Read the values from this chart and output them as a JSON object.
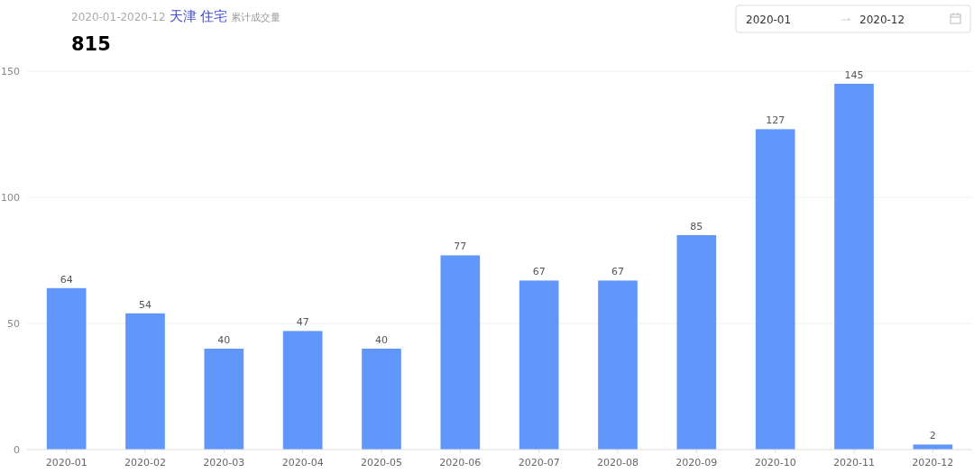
{
  "chart_data": {
    "type": "bar",
    "title": "815",
    "annotations": [
      "2020-01-2020-12",
      "天津 住宅",
      "累计成交量",
      "2020-01",
      "2020-12"
    ],
    "categories": [
      "2020-01",
      "2020-02",
      "2020-03",
      "2020-04",
      "2020-05",
      "2020-06",
      "2020-07",
      "2020-08",
      "2020-09",
      "2020-10",
      "2020-11",
      "2020-12"
    ],
    "values": [
      64,
      54,
      40,
      47,
      40,
      77,
      67,
      67,
      85,
      127,
      145,
      2
    ],
    "color": "#6197fb",
    "ylim": [
      0,
      150
    ],
    "yticks": [
      0,
      50,
      100,
      150
    ],
    "grid": "y",
    "data_labels": true
  }
}
